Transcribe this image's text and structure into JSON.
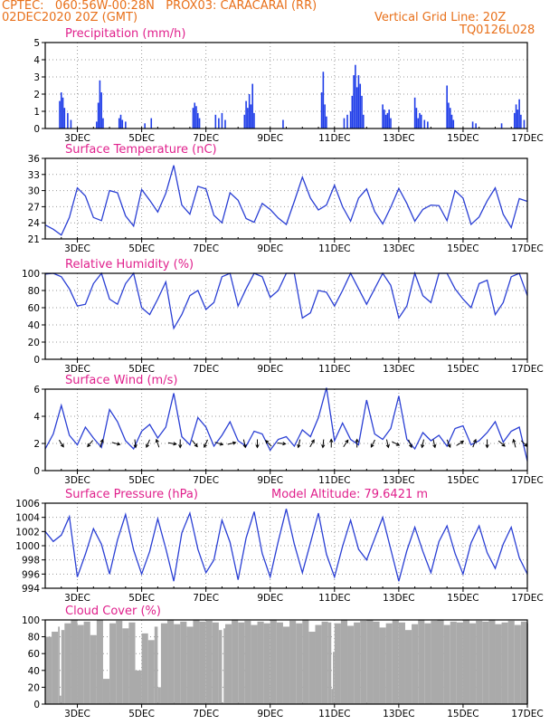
{
  "header": {
    "line1_left": "CPTEC:   060:56W-00:28N   PROX03: CARACARAI (RR)",
    "line2_left": "02DEC2020 20Z (GMT)",
    "line2_right": "Vertical Grid Line: 20Z",
    "line3_right": "TQ0126L028"
  },
  "colors": {
    "header": "#e8701a",
    "title": "#e0208c",
    "line": "#2a3fd4",
    "bar": "#1f3de8",
    "cloud": "#aaaaaa",
    "arrow": "#000000",
    "grid": "#999999"
  },
  "x_axis": {
    "ticks": [
      "3DEC",
      "5DEC",
      "7DEC",
      "9DEC",
      "11DEC",
      "13DEC",
      "15DEC",
      "17DEC"
    ],
    "tick_days": [
      3,
      5,
      7,
      9,
      11,
      13,
      15,
      17
    ],
    "start_day": 2.0,
    "end_day": 17.0
  },
  "chart_data": [
    {
      "type": "bar",
      "title": "Precipitation (mm/h)",
      "ylim": [
        0,
        5
      ],
      "yticks": [
        "0",
        "1",
        "2",
        "3",
        "4",
        "5"
      ],
      "x": [
        2.45,
        2.5,
        2.55,
        2.6,
        2.7,
        2.8,
        3.6,
        3.65,
        3.7,
        3.75,
        3.8,
        4.3,
        4.35,
        4.4,
        4.5,
        5.1,
        5.3,
        6.6,
        6.65,
        6.7,
        6.75,
        6.8,
        7.3,
        7.4,
        7.5,
        7.6,
        8.2,
        8.25,
        8.3,
        8.35,
        8.4,
        8.45,
        8.5,
        9.4,
        10.6,
        10.65,
        10.7,
        10.75,
        11.3,
        11.4,
        11.5,
        11.55,
        11.6,
        11.65,
        11.7,
        11.75,
        11.8,
        11.85,
        11.9,
        12.5,
        12.55,
        12.6,
        12.65,
        12.7,
        12.75,
        13.5,
        13.55,
        13.6,
        13.65,
        13.7,
        13.8,
        13.9,
        14.5,
        14.55,
        14.6,
        14.65,
        14.7,
        15.3,
        15.4,
        16.2,
        16.6,
        16.65,
        16.7,
        16.75,
        16.8,
        16.9
      ],
      "values": [
        1.6,
        2.1,
        1.8,
        1.2,
        0.9,
        0.5,
        0.4,
        1.5,
        2.8,
        2.1,
        0.6,
        0.6,
        0.8,
        0.5,
        0.4,
        0.3,
        0.6,
        1.2,
        1.5,
        1.3,
        0.9,
        0.6,
        0.8,
        0.6,
        0.9,
        0.5,
        0.8,
        1.6,
        1.2,
        2.0,
        1.4,
        2.6,
        0.9,
        0.5,
        2.1,
        3.3,
        1.4,
        0.7,
        0.6,
        0.8,
        1.0,
        1.9,
        3.1,
        3.7,
        2.4,
        3.1,
        2.6,
        1.9,
        0.8,
        1.4,
        1.1,
        0.8,
        0.9,
        1.1,
        0.6,
        1.8,
        1.2,
        0.6,
        0.9,
        0.8,
        0.5,
        0.4,
        2.5,
        1.5,
        1.2,
        0.8,
        0.5,
        0.4,
        0.3,
        0.3,
        0.9,
        1.4,
        1.1,
        1.7,
        0.8,
        0.5
      ]
    },
    {
      "type": "line",
      "title": "Surface Temperature (nC)",
      "ylim": [
        21,
        36
      ],
      "yticks": [
        "21",
        "24",
        "27",
        "30",
        "33",
        "36"
      ],
      "x": [
        2.0,
        2.25,
        2.5,
        2.75,
        3.0,
        3.25,
        3.5,
        3.75,
        4.0,
        4.25,
        4.5,
        4.75,
        5.0,
        5.25,
        5.5,
        5.75,
        6.0,
        6.25,
        6.5,
        6.75,
        7.0,
        7.25,
        7.5,
        7.75,
        8.0,
        8.25,
        8.5,
        8.75,
        9.0,
        9.25,
        9.5,
        9.75,
        10.0,
        10.25,
        10.5,
        10.75,
        11.0,
        11.25,
        11.5,
        11.75,
        12.0,
        12.25,
        12.5,
        12.75,
        13.0,
        13.25,
        13.5,
        13.75,
        14.0,
        14.25,
        14.5,
        14.75,
        15.0,
        15.25,
        15.5,
        15.75,
        16.0,
        16.25,
        16.5,
        16.75,
        17.0
      ],
      "values": [
        23.6,
        22.8,
        21.7,
        25.0,
        30.5,
        29.0,
        25.0,
        24.4,
        30.0,
        29.6,
        25.3,
        23.4,
        30.2,
        28.2,
        26.0,
        29.5,
        34.7,
        27.3,
        25.6,
        30.8,
        30.3,
        25.4,
        24.0,
        29.6,
        28.2,
        24.8,
        24.1,
        27.6,
        26.5,
        24.9,
        23.7,
        28.0,
        32.5,
        28.6,
        26.4,
        27.3,
        31.0,
        27.0,
        24.3,
        28.6,
        30.3,
        26.1,
        23.8,
        26.9,
        30.4,
        27.6,
        24.3,
        26.5,
        27.3,
        27.2,
        24.4,
        30.0,
        28.6,
        23.7,
        25.1,
        28.1,
        30.5,
        25.6,
        23.1,
        28.5,
        28.0
      ]
    },
    {
      "type": "line",
      "title": "Relative Humidity (%)",
      "ylim": [
        0,
        100
      ],
      "yticks": [
        "0",
        "20",
        "40",
        "60",
        "80",
        "100"
      ],
      "x": [
        2.0,
        2.25,
        2.5,
        2.75,
        3.0,
        3.25,
        3.5,
        3.75,
        4.0,
        4.25,
        4.5,
        4.75,
        5.0,
        5.25,
        5.5,
        5.75,
        6.0,
        6.25,
        6.5,
        6.75,
        7.0,
        7.25,
        7.5,
        7.75,
        8.0,
        8.25,
        8.5,
        8.75,
        9.0,
        9.25,
        9.5,
        9.75,
        10.0,
        10.25,
        10.5,
        10.75,
        11.0,
        11.25,
        11.5,
        11.75,
        12.0,
        12.25,
        12.5,
        12.75,
        13.0,
        13.25,
        13.5,
        13.75,
        14.0,
        14.25,
        14.5,
        14.75,
        15.0,
        15.25,
        15.5,
        15.75,
        16.0,
        16.25,
        16.5,
        16.75,
        17.0
      ],
      "values": [
        99,
        100,
        96,
        82,
        62,
        64,
        88,
        100,
        70,
        64,
        88,
        100,
        60,
        52,
        70,
        90,
        36,
        52,
        74,
        80,
        58,
        66,
        96,
        100,
        62,
        82,
        100,
        96,
        72,
        80,
        100,
        100,
        48,
        54,
        80,
        78,
        62,
        80,
        100,
        82,
        64,
        82,
        100,
        86,
        48,
        62,
        100,
        74,
        66,
        100,
        100,
        82,
        70,
        60,
        88,
        92,
        52,
        66,
        96,
        100,
        74
      ]
    },
    {
      "type": "line",
      "title": "Surface Wind (m/s)",
      "ylim": [
        0,
        6
      ],
      "yticks": [
        "0",
        "2",
        "4",
        "6"
      ],
      "x": [
        2.0,
        2.25,
        2.5,
        2.75,
        3.0,
        3.25,
        3.5,
        3.75,
        4.0,
        4.25,
        4.5,
        4.75,
        5.0,
        5.25,
        5.5,
        5.75,
        6.0,
        6.25,
        6.5,
        6.75,
        7.0,
        7.25,
        7.5,
        7.75,
        8.0,
        8.25,
        8.5,
        8.75,
        9.0,
        9.25,
        9.5,
        9.75,
        10.0,
        10.25,
        10.5,
        10.75,
        11.0,
        11.25,
        11.5,
        11.75,
        12.0,
        12.25,
        12.5,
        12.75,
        13.0,
        13.25,
        13.5,
        13.75,
        14.0,
        14.25,
        14.5,
        14.75,
        15.0,
        15.25,
        15.5,
        15.75,
        16.0,
        16.25,
        16.5,
        16.75,
        17.0
      ],
      "values": [
        1.6,
        2.7,
        4.8,
        2.6,
        1.9,
        3.2,
        2.4,
        1.7,
        4.5,
        3.6,
        2.2,
        1.6,
        2.9,
        3.4,
        2.4,
        3.2,
        5.7,
        2.5,
        1.9,
        3.9,
        3.2,
        1.8,
        2.6,
        3.6,
        2.2,
        1.8,
        2.9,
        2.7,
        1.5,
        2.3,
        2.5,
        1.8,
        3.0,
        2.5,
        3.9,
        6.1,
        2.2,
        3.5,
        2.3,
        1.9,
        5.2,
        2.7,
        2.3,
        3.1,
        5.5,
        2.3,
        1.6,
        2.8,
        2.2,
        2.6,
        1.8,
        3.1,
        3.3,
        1.9,
        2.2,
        2.8,
        3.6,
        2.1,
        2.9,
        3.2,
        0.7
      ],
      "arrows": {
        "x": [
          2.5,
          3.4,
          3.75,
          4.2,
          4.8,
          5.2,
          5.5,
          5.95,
          6.2,
          6.65,
          7.0,
          7.4,
          7.8,
          8.2,
          8.6,
          8.95,
          9.35,
          9.9,
          10.3,
          10.65,
          10.9,
          11.35,
          11.7,
          12.2,
          12.65,
          12.9,
          13.35,
          13.75,
          14.1,
          14.55,
          14.9,
          15.35,
          15.75,
          16.2,
          16.6,
          16.9
        ],
        "u": [
          0.5,
          -0.5,
          0.3,
          0.8,
          0.1,
          -0.3,
          -0.2,
          0.6,
          0.0,
          0.5,
          -0.4,
          1.0,
          0.9,
          0.2,
          0.0,
          -0.5,
          0.9,
          -0.2,
          0.4,
          -0.1,
          0.0,
          0.4,
          0.0,
          -0.5,
          0.2,
          1.0,
          0.2,
          -0.2,
          0.2,
          0.3,
          0.8,
          0.3,
          0.0,
          0.6,
          -0.2,
          0.4
        ],
        "v": [
          -0.8,
          -0.6,
          0.9,
          -0.2,
          -0.9,
          -0.7,
          0.6,
          -0.1,
          -0.9,
          -0.6,
          -0.9,
          -0.3,
          0.2,
          -0.9,
          -0.9,
          0.5,
          -0.1,
          -0.9,
          0.7,
          -1.0,
          1.0,
          0.6,
          1.0,
          -1.0,
          -0.9,
          -0.5,
          -0.5,
          -0.9,
          -0.9,
          -0.7,
          0.5,
          0.8,
          -0.9,
          -0.5,
          0.7,
          -0.4
        ]
      }
    },
    {
      "type": "line",
      "title": "Surface Pressure (hPa)",
      "annotation": "Model Altitude: 79.6421 m",
      "ylim": [
        994,
        1006
      ],
      "yticks": [
        "994",
        "996",
        "998",
        "1000",
        "1002",
        "1004",
        "1006"
      ],
      "x": [
        2.0,
        2.25,
        2.5,
        2.75,
        3.0,
        3.25,
        3.5,
        3.75,
        4.0,
        4.25,
        4.5,
        4.75,
        5.0,
        5.25,
        5.5,
        5.75,
        6.0,
        6.25,
        6.5,
        6.75,
        7.0,
        7.25,
        7.5,
        7.75,
        8.0,
        8.25,
        8.5,
        8.75,
        9.0,
        9.25,
        9.5,
        9.75,
        10.0,
        10.25,
        10.5,
        10.75,
        11.0,
        11.25,
        11.5,
        11.75,
        12.0,
        12.25,
        12.5,
        12.75,
        13.0,
        13.25,
        13.5,
        13.75,
        14.0,
        14.25,
        14.5,
        14.75,
        15.0,
        15.25,
        15.5,
        15.75,
        16.0,
        16.25,
        16.5,
        16.75,
        17.0
      ],
      "values": [
        1002.0,
        1000.6,
        1001.5,
        1004.1,
        995.6,
        998.8,
        1002.4,
        1000.2,
        996.0,
        1000.8,
        1004.4,
        999.4,
        996.0,
        999.2,
        1003.8,
        999.6,
        995.0,
        1001.8,
        1004.6,
        999.5,
        996.2,
        998.0,
        1003.6,
        1000.5,
        995.2,
        1001.1,
        1004.8,
        998.9,
        995.6,
        1000.6,
        1005.2,
        1000.2,
        996.2,
        1000.4,
        1004.6,
        998.8,
        995.6,
        999.9,
        1003.6,
        999.5,
        998.0,
        1001.0,
        1004.0,
        999.5,
        995.0,
        999.3,
        1002.6,
        999.2,
        996.2,
        1000.6,
        1002.8,
        998.9,
        996.0,
        1000.4,
        1002.8,
        999.0,
        996.8,
        1000.2,
        1002.6,
        998.3,
        996.0
      ]
    },
    {
      "type": "area",
      "title": "Cloud Cover (%)",
      "ylim": [
        0,
        100
      ],
      "yticks": [
        "0",
        "20",
        "40",
        "60",
        "80",
        "100"
      ],
      "x": [
        2.0,
        2.2,
        2.4,
        2.45,
        2.5,
        2.6,
        2.8,
        3.0,
        3.2,
        3.4,
        3.6,
        3.8,
        4.0,
        4.2,
        4.4,
        4.6,
        4.8,
        5.0,
        5.2,
        5.4,
        5.5,
        5.6,
        5.8,
        6.0,
        6.2,
        6.4,
        6.6,
        6.8,
        7.0,
        7.2,
        7.4,
        7.5,
        7.55,
        7.6,
        7.8,
        8.0,
        8.2,
        8.4,
        8.6,
        8.8,
        9.0,
        9.2,
        9.4,
        9.6,
        9.8,
        10.0,
        10.2,
        10.4,
        10.6,
        10.8,
        10.9,
        10.95,
        11.0,
        11.2,
        11.4,
        11.6,
        11.8,
        12.0,
        12.2,
        12.4,
        12.6,
        12.8,
        13.0,
        13.2,
        13.4,
        13.6,
        13.8,
        14.0,
        14.2,
        14.4,
        14.6,
        14.8,
        15.0,
        15.2,
        15.4,
        15.6,
        15.8,
        16.0,
        16.2,
        16.4,
        16.6,
        16.8,
        17.0
      ],
      "values": [
        80,
        86,
        92,
        10,
        88,
        96,
        100,
        94,
        98,
        82,
        100,
        30,
        96,
        99,
        90,
        97,
        40,
        84,
        76,
        92,
        20,
        96,
        100,
        95,
        98,
        92,
        100,
        98,
        99,
        97,
        88,
        2,
        90,
        95,
        100,
        97,
        99,
        94,
        98,
        96,
        100,
        97,
        92,
        99,
        96,
        100,
        86,
        94,
        98,
        97,
        18,
        62,
        96,
        100,
        93,
        97,
        99,
        100,
        98,
        91,
        96,
        100,
        97,
        88,
        95,
        100,
        96,
        99,
        100,
        94,
        98,
        97,
        100,
        96,
        99,
        98,
        100,
        95,
        97,
        99,
        94,
        98,
        96
      ]
    }
  ]
}
